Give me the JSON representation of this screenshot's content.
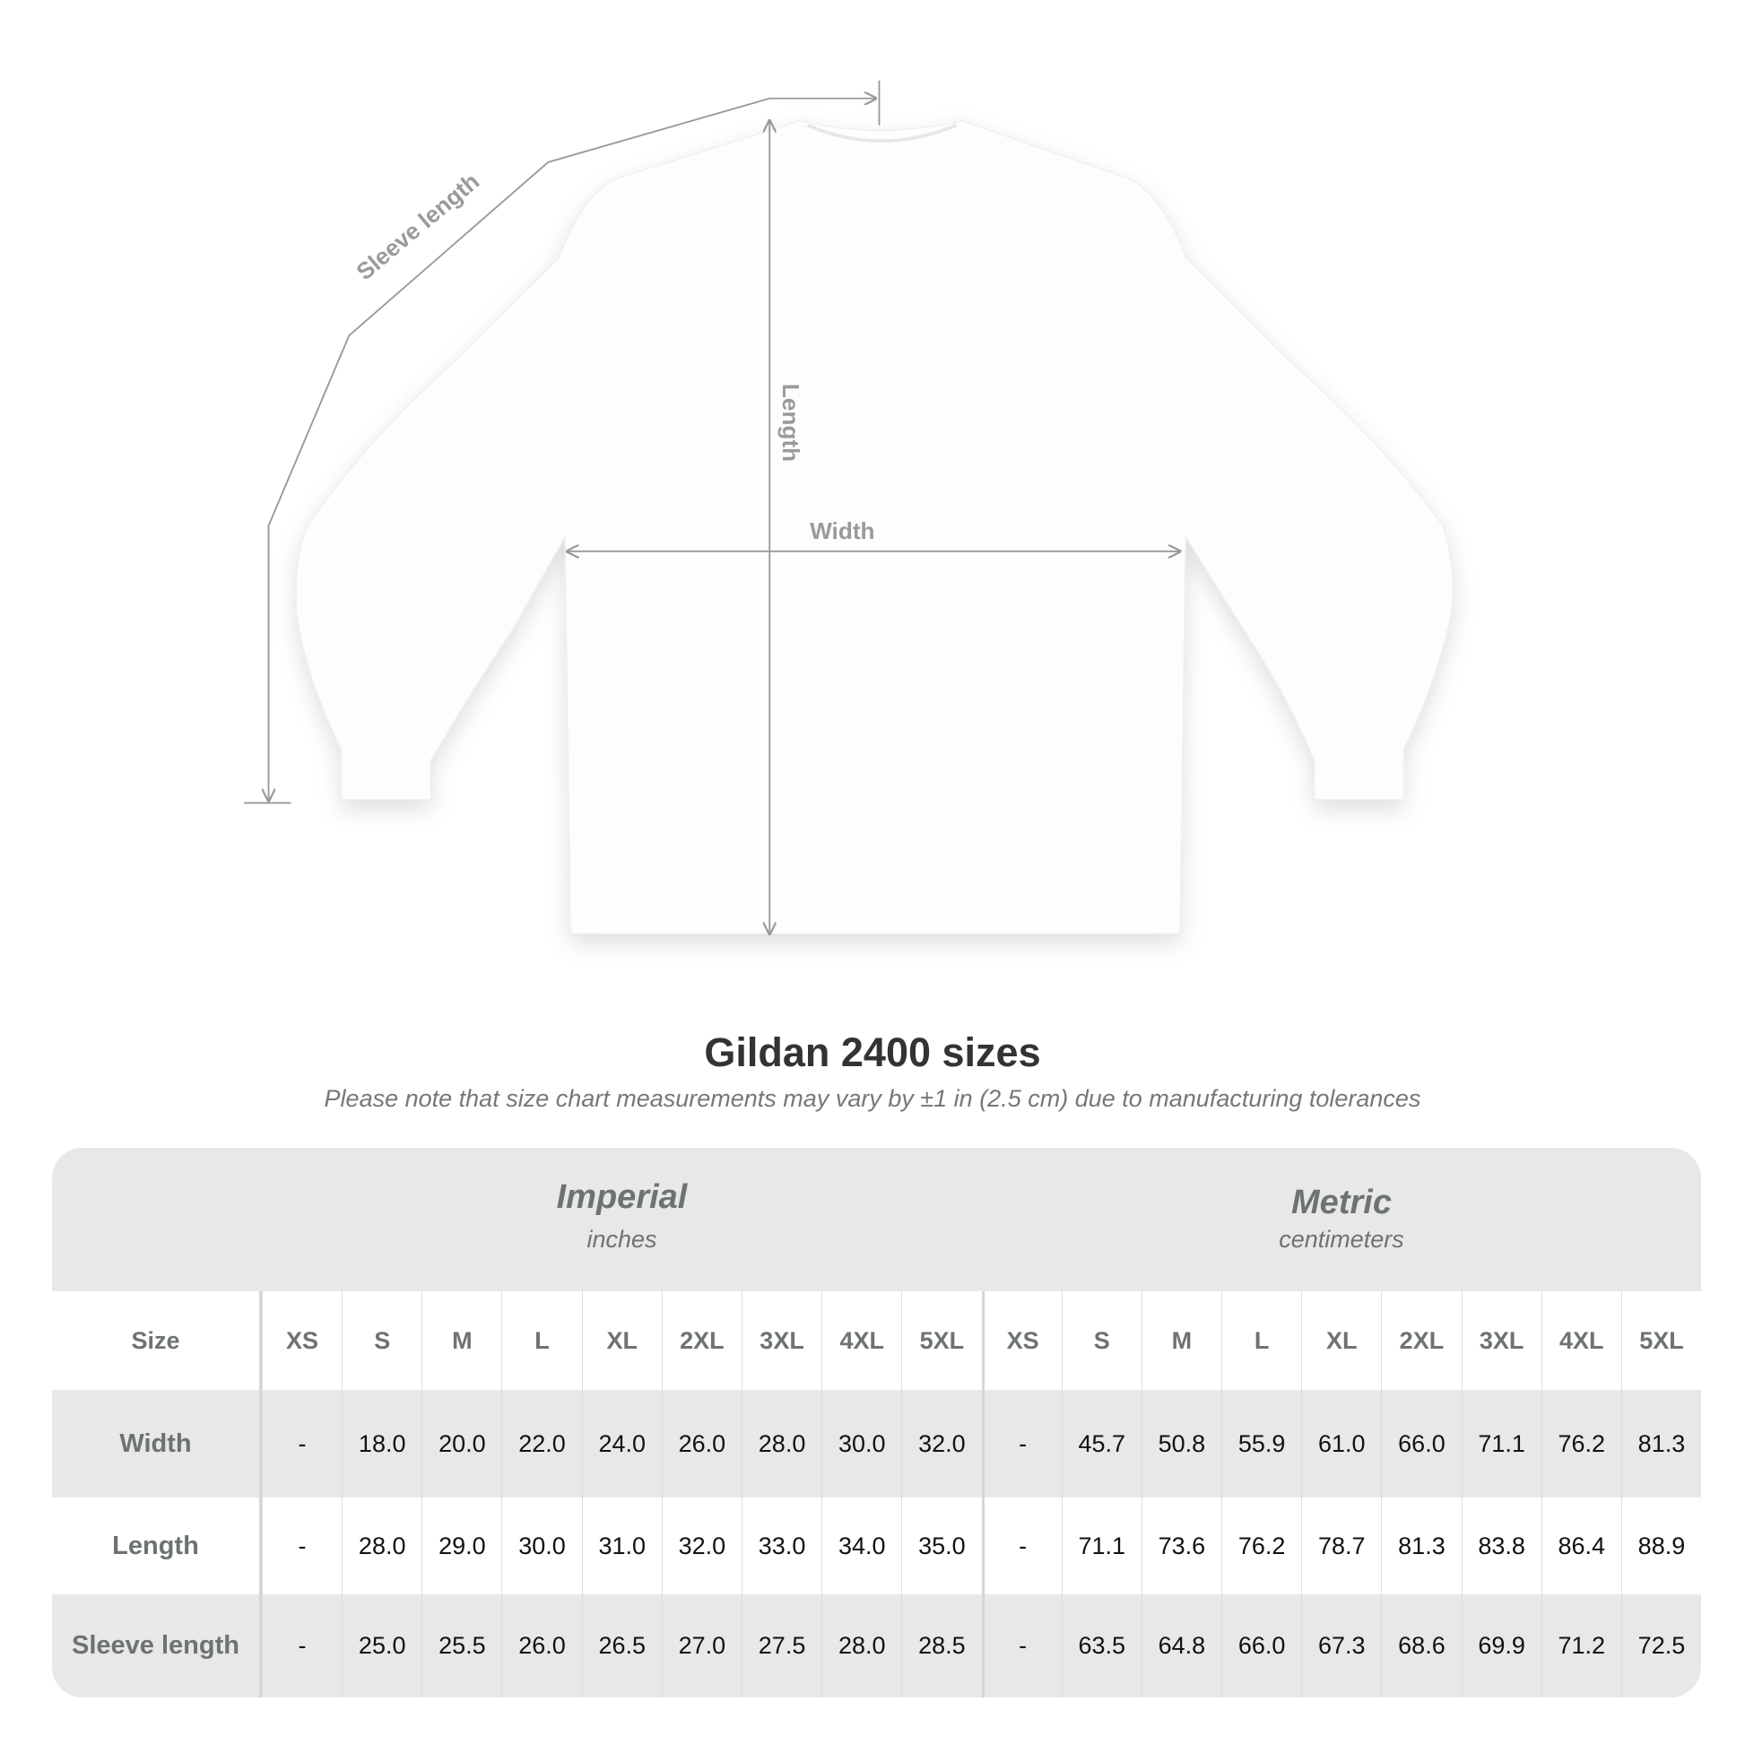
{
  "diagram": {
    "labels": {
      "sleeve": "Sleeve length",
      "length": "Length",
      "width": "Width"
    }
  },
  "title": "Gildan 2400 sizes",
  "note": "Please note that size chart measurements may vary by ±1 in (2.5 cm) due to manufacturing tolerances",
  "table": {
    "imperial": {
      "system": "Imperial",
      "unit": "inches"
    },
    "metric": {
      "system": "Metric",
      "unit": "centimeters"
    },
    "size_label": "Size",
    "sizes": [
      "XS",
      "S",
      "M",
      "L",
      "XL",
      "2XL",
      "3XL",
      "4XL",
      "5XL"
    ],
    "rows": [
      {
        "label": "Width",
        "imperial": [
          "-",
          "18.0",
          "20.0",
          "22.0",
          "24.0",
          "26.0",
          "28.0",
          "30.0",
          "32.0"
        ],
        "metric": [
          "-",
          "45.7",
          "50.8",
          "55.9",
          "61.0",
          "66.0",
          "71.1",
          "76.2",
          "81.3"
        ]
      },
      {
        "label": "Length",
        "imperial": [
          "-",
          "28.0",
          "29.0",
          "30.0",
          "31.0",
          "32.0",
          "33.0",
          "34.0",
          "35.0"
        ],
        "metric": [
          "-",
          "71.1",
          "73.6",
          "76.2",
          "78.7",
          "81.3",
          "83.8",
          "86.4",
          "88.9"
        ]
      },
      {
        "label": "Sleeve length",
        "imperial": [
          "-",
          "25.0",
          "25.5",
          "26.0",
          "26.5",
          "27.0",
          "27.5",
          "28.0",
          "28.5"
        ],
        "metric": [
          "-",
          "63.5",
          "64.8",
          "66.0",
          "67.3",
          "68.6",
          "69.9",
          "71.2",
          "72.5"
        ]
      }
    ]
  },
  "colors": {
    "header_bg": "#e8e8e8",
    "label_text": "#6d7272",
    "measure_line": "#999999"
  }
}
